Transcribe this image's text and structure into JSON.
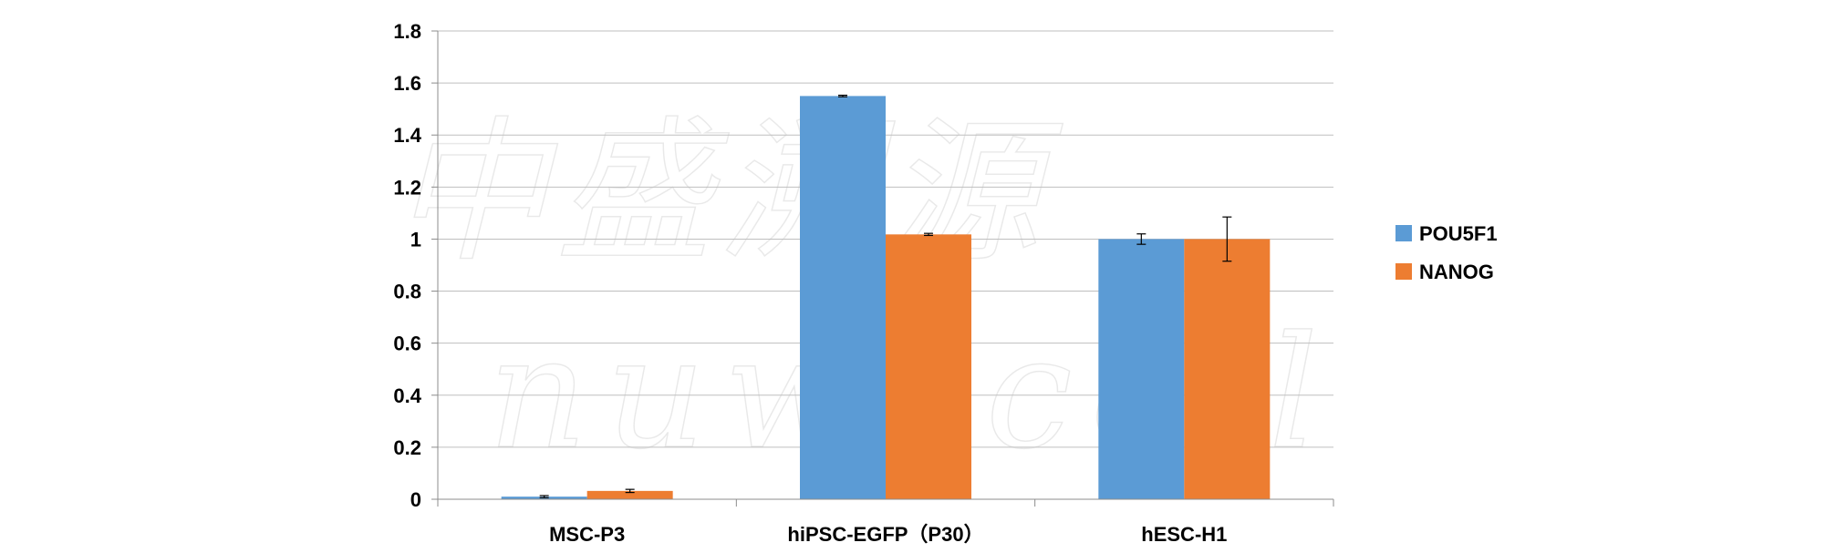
{
  "chart_data": {
    "type": "bar",
    "categories": [
      "MSC-P3",
      "hiPSC-EGFP（P30）",
      "hESC-H1"
    ],
    "series": [
      {
        "name": "POU5F1",
        "color": "#5B9BD5",
        "values": [
          0.01,
          1.55,
          1.0
        ],
        "errors": [
          0.004,
          0.003,
          0.02
        ]
      },
      {
        "name": "NANOG",
        "color": "#ED7D31",
        "values": [
          0.032,
          1.018,
          1.0
        ],
        "errors": [
          0.006,
          0.004,
          0.085
        ]
      }
    ],
    "ylim": [
      0,
      1.8
    ],
    "yticks": [
      "0",
      "0.2",
      "0.4",
      "0.6",
      "0.8",
      "1",
      "1.2",
      "1.4",
      "1.6",
      "1.8"
    ],
    "grid": true,
    "legend_position": "right",
    "title": "",
    "xlabel": "",
    "ylabel": ""
  },
  "watermark": {
    "line1": "中盛溯源",
    "line2": "nuwacell"
  }
}
